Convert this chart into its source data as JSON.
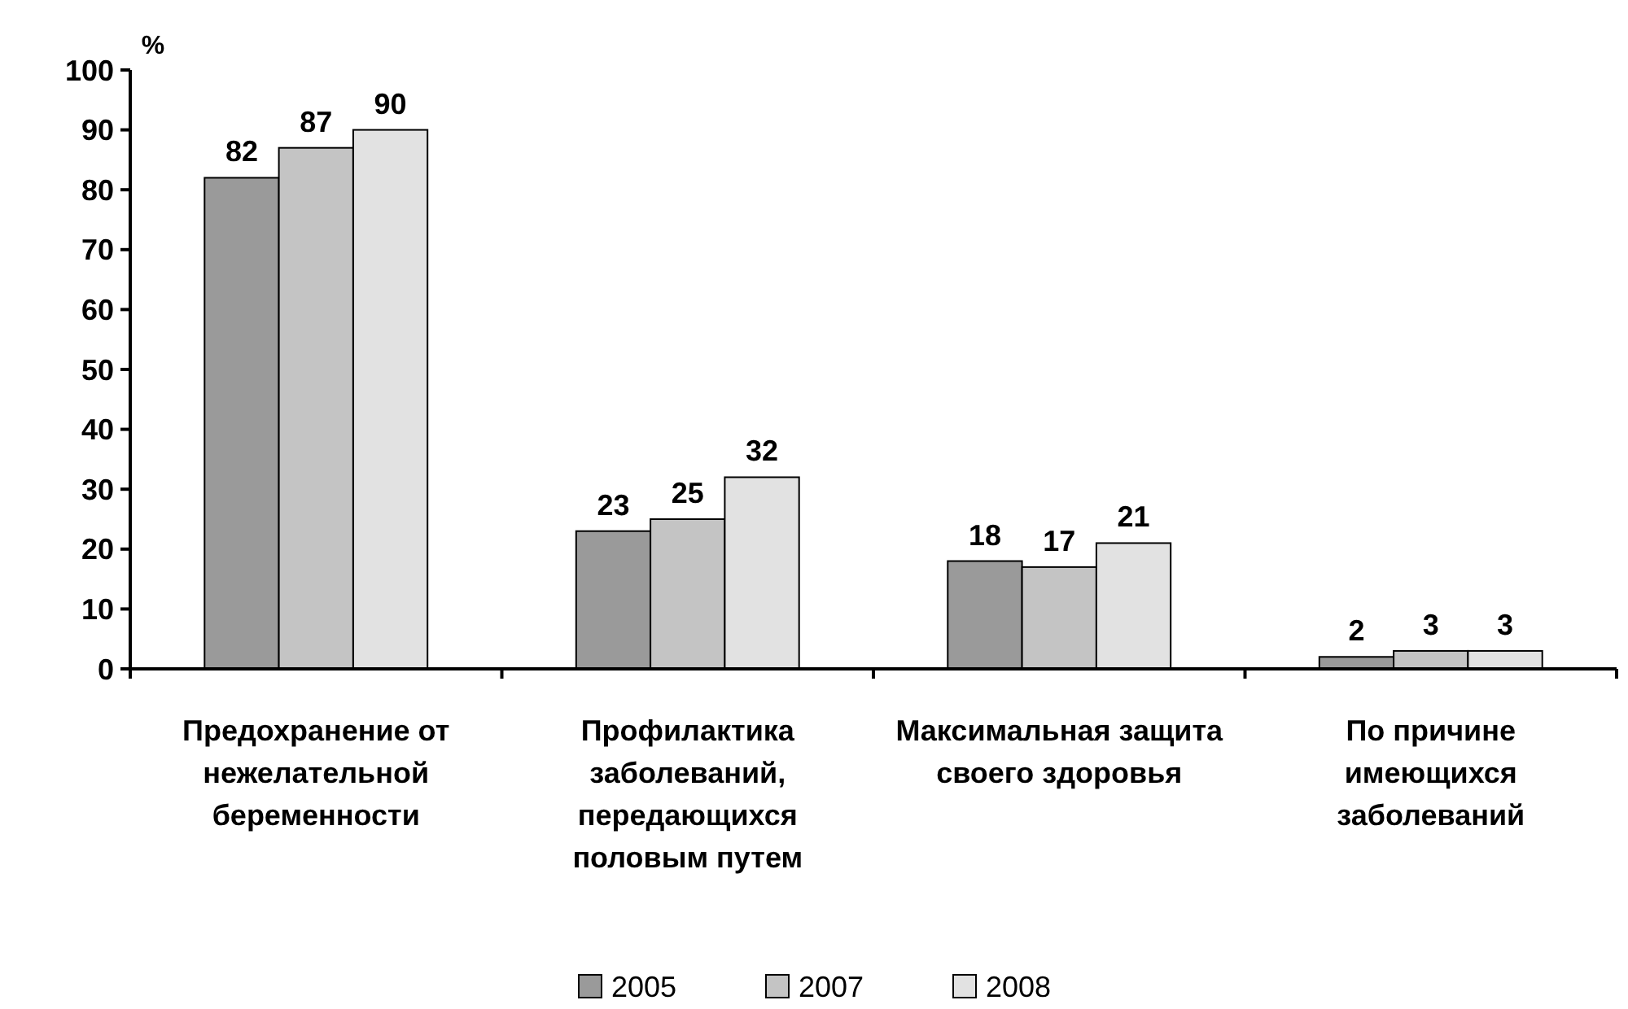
{
  "chart_data": {
    "type": "bar",
    "ylabel": "%",
    "categories": [
      "Предохранение от нежелательной беременности",
      "Профилактика заболеваний, передающихся половым путем",
      "Максимальная защита своего здоровья",
      "По причине имеющихся заболеваний"
    ],
    "series": [
      {
        "name": "2005",
        "color": "#9a9a9a",
        "values": [
          82,
          23,
          18,
          2
        ]
      },
      {
        "name": "2007",
        "color": "#c4c4c4",
        "values": [
          87,
          25,
          17,
          3
        ]
      },
      {
        "name": "2008",
        "color": "#e2e2e2",
        "values": [
          90,
          32,
          21,
          3
        ]
      }
    ],
    "ylim": [
      0,
      100
    ],
    "yticks": [
      0,
      10,
      20,
      30,
      40,
      50,
      60,
      70,
      80,
      90,
      100
    ],
    "data_labels": true,
    "legend": "bottom",
    "grid": false
  }
}
